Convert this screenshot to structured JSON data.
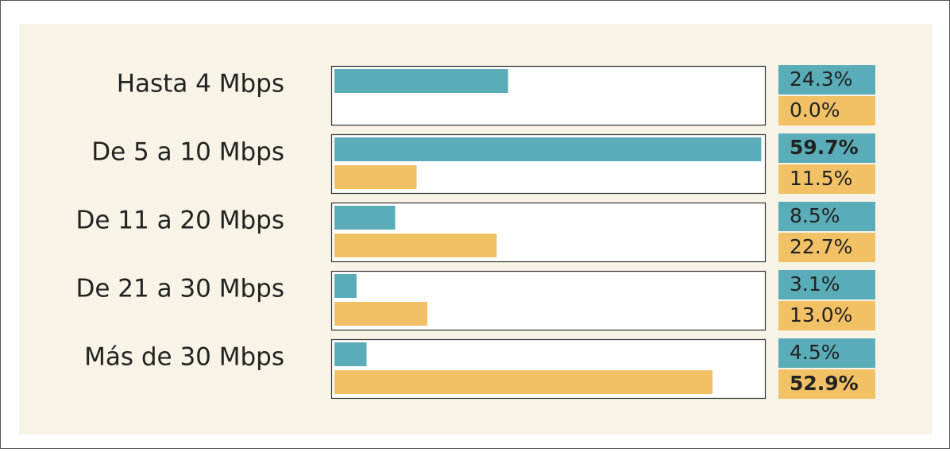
{
  "chart_data": {
    "type": "bar",
    "orientation": "horizontal",
    "categories": [
      "Hasta 4 Mbps",
      "De 5 a 10 Mbps",
      "De 11 a 20 Mbps",
      "De 21 a 30 Mbps",
      "Más de 30 Mbps"
    ],
    "series": [
      {
        "color": "#5aadb8",
        "values": [
          24.3,
          59.7,
          8.5,
          3.1,
          4.5
        ],
        "value_labels": [
          "24.3%",
          "59.7%",
          "8.5%",
          "3.1%",
          "4.5%"
        ]
      },
      {
        "color": "#f2c166",
        "values": [
          0.0,
          11.5,
          22.7,
          13.0,
          52.9
        ],
        "value_labels": [
          "0.0%",
          "11.5%",
          "22.7%",
          "13.0%",
          "52.9%"
        ]
      }
    ],
    "xlim": [
      0,
      60
    ]
  }
}
